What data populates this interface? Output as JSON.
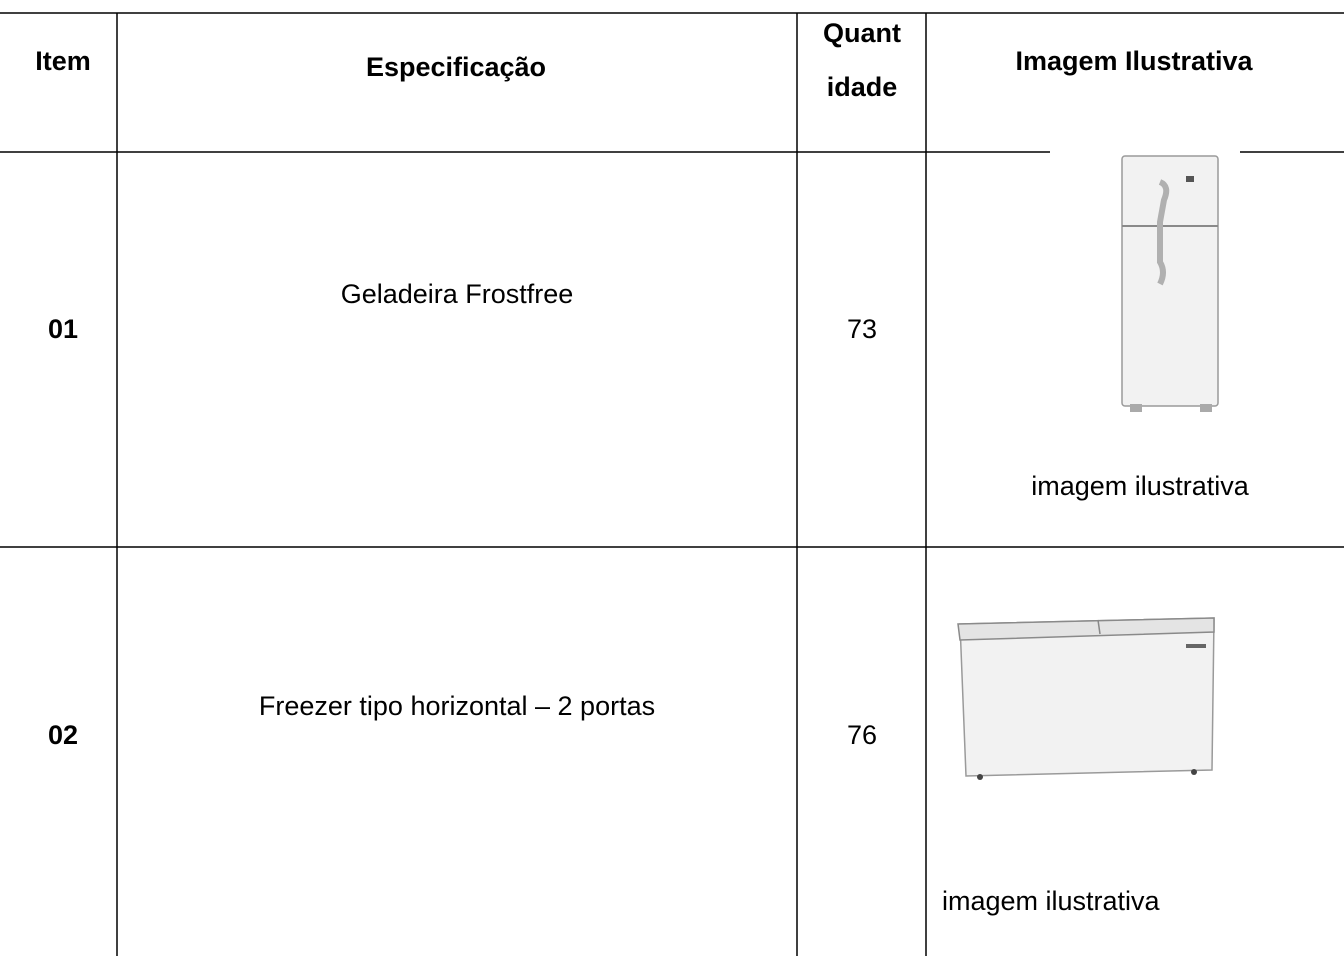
{
  "table": {
    "header": {
      "item": "Item",
      "spec": "Especificação",
      "qty": [
        "Quant",
        "idade"
      ],
      "image": "Imagem Ilustrativa"
    },
    "rows": [
      {
        "item": "01",
        "spec": "Geladeira Frostfree",
        "qty": "73",
        "caption": "imagem ilustrativa"
      },
      {
        "item": "02",
        "spec": "Freezer tipo horizontal – 2 portas",
        "qty": "76",
        "caption": "imagem ilustrativa"
      }
    ]
  }
}
